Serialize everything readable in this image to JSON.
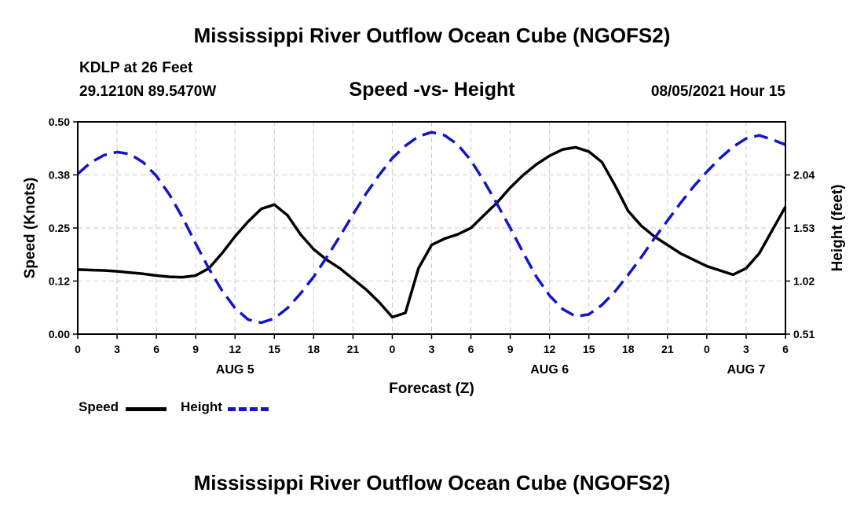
{
  "header": {
    "main_title": "Mississippi River Outflow Ocean Cube (NGOFS2)",
    "station": "KDLP at 26 Feet",
    "coords": "29.1210N  89.5470W",
    "datetime": "08/05/2021 Hour 15",
    "bottom_title": "Mississippi River Outflow Ocean Cube (NGOFS2)"
  },
  "legend": {
    "speed_label": "Speed",
    "height_label": "Height"
  },
  "colors": {
    "speed": "#000000",
    "height": "#1414c8",
    "grid": "#c8c8c8"
  },
  "chart_data": {
    "type": "line",
    "title": "Speed -vs- Height",
    "xlabel": "Forecast (Z)",
    "ylabel": "Speed (Knots)",
    "y2label": "Height (feet)",
    "xlim": [
      0,
      54
    ],
    "ylim": [
      0,
      0.5
    ],
    "y2lim": [
      0.51,
      2.55
    ],
    "x_ticks": [
      0,
      3,
      6,
      9,
      12,
      15,
      18,
      21,
      24,
      27,
      30,
      33,
      36,
      39,
      42,
      45,
      48,
      51,
      54
    ],
    "x_tick_labels": [
      "0",
      "3",
      "6",
      "9",
      "12",
      "15",
      "18",
      "21",
      "0",
      "3",
      "6",
      "9",
      "12",
      "15",
      "18",
      "21",
      "0",
      "3",
      "6"
    ],
    "y_ticks": [
      0.0,
      0.125,
      0.25,
      0.375,
      0.5
    ],
    "y_tick_labels": [
      "0.00",
      "0.12",
      "0.25",
      "0.38",
      "0.50"
    ],
    "y2_ticks": [
      0.51,
      1.02,
      1.53,
      2.04
    ],
    "y2_tick_labels": [
      "0.51",
      "1.02",
      "1.53",
      "2.04"
    ],
    "day_labels": [
      {
        "x": 12,
        "label": "AUG 5"
      },
      {
        "x": 36,
        "label": "AUG 6"
      },
      {
        "x": 51,
        "label": "AUG 7"
      }
    ],
    "grid": true,
    "series": [
      {
        "name": "Speed",
        "axis": "left",
        "style": "solid",
        "x": [
          0,
          1,
          2,
          3,
          4,
          5,
          6,
          7,
          8,
          9,
          10,
          11,
          12,
          13,
          14,
          15,
          16,
          17,
          18,
          19,
          20,
          21,
          22,
          23,
          24,
          25,
          26,
          27,
          28,
          29,
          30,
          31,
          32,
          33,
          34,
          35,
          36,
          37,
          38,
          39,
          40,
          41,
          42,
          43,
          44,
          45,
          46,
          47,
          48,
          49,
          50,
          51,
          52,
          53,
          54
        ],
        "values": [
          0.152,
          0.151,
          0.15,
          0.148,
          0.145,
          0.142,
          0.138,
          0.135,
          0.134,
          0.138,
          0.155,
          0.19,
          0.23,
          0.265,
          0.295,
          0.305,
          0.28,
          0.235,
          0.2,
          0.175,
          0.155,
          0.13,
          0.105,
          0.075,
          0.04,
          0.05,
          0.155,
          0.21,
          0.225,
          0.235,
          0.25,
          0.28,
          0.31,
          0.345,
          0.375,
          0.4,
          0.42,
          0.435,
          0.44,
          0.43,
          0.405,
          0.35,
          0.29,
          0.255,
          0.23,
          0.21,
          0.19,
          0.175,
          0.16,
          0.15,
          0.14,
          0.155,
          0.19,
          0.245,
          0.3
        ]
      },
      {
        "name": "Height",
        "axis": "right",
        "style": "dashed",
        "x": [
          0,
          1,
          2,
          3,
          4,
          5,
          6,
          7,
          8,
          9,
          10,
          11,
          12,
          13,
          14,
          15,
          16,
          17,
          18,
          19,
          20,
          21,
          22,
          23,
          24,
          25,
          26,
          27,
          28,
          29,
          30,
          31,
          32,
          33,
          34,
          35,
          36,
          37,
          38,
          39,
          40,
          41,
          42,
          43,
          44,
          45,
          46,
          47,
          48,
          49,
          50,
          51,
          52,
          53,
          54
        ],
        "values": [
          2.05,
          2.16,
          2.23,
          2.26,
          2.24,
          2.16,
          2.03,
          1.85,
          1.63,
          1.38,
          1.14,
          0.93,
          0.76,
          0.65,
          0.62,
          0.66,
          0.76,
          0.9,
          1.06,
          1.25,
          1.45,
          1.66,
          1.86,
          2.04,
          2.2,
          2.32,
          2.41,
          2.45,
          2.42,
          2.33,
          2.18,
          1.98,
          1.76,
          1.53,
          1.29,
          1.06,
          0.88,
          0.75,
          0.68,
          0.7,
          0.79,
          0.92,
          1.08,
          1.25,
          1.43,
          1.6,
          1.77,
          1.93,
          2.07,
          2.2,
          2.31,
          2.39,
          2.42,
          2.38,
          2.33
        ]
      }
    ]
  }
}
